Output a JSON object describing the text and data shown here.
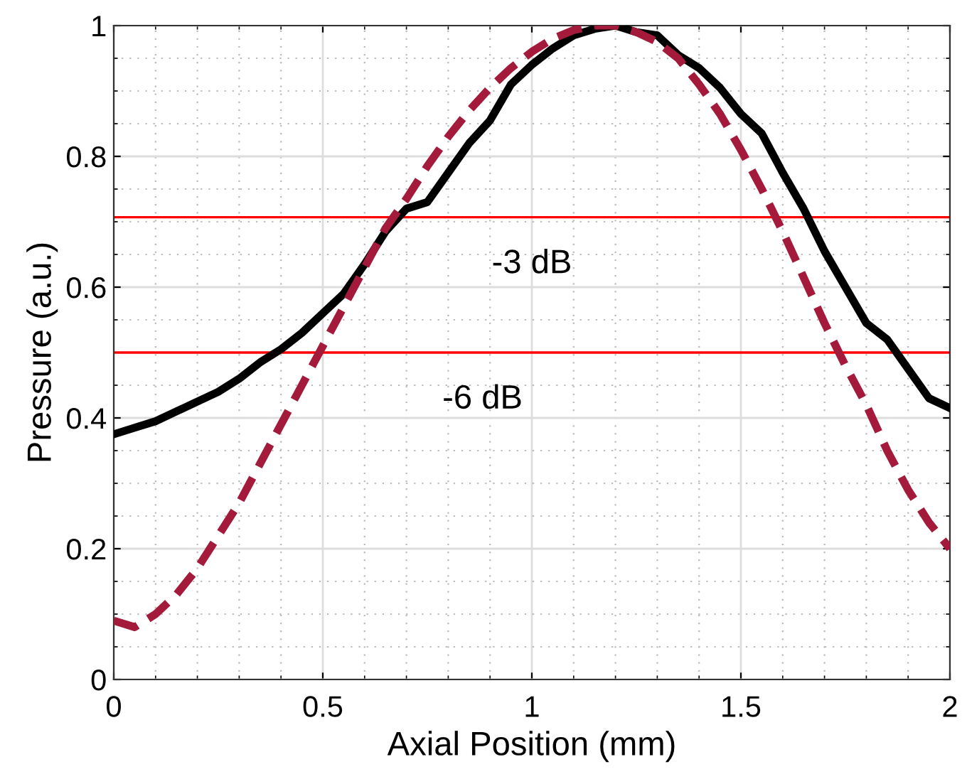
{
  "chart_data": {
    "type": "line",
    "xlabel": "Axial Position (mm)",
    "ylabel": "Pressure (a.u.)",
    "xlim": [
      0,
      2
    ],
    "ylim": [
      0,
      1
    ],
    "xticks": [
      0,
      0.5,
      1,
      1.5,
      2
    ],
    "yticks": [
      0,
      0.2,
      0.4,
      0.6,
      0.8,
      1
    ],
    "grid": true,
    "series": [
      {
        "color": "#000000",
        "line_style": "solid",
        "x": [
          0,
          0.05,
          0.1,
          0.15,
          0.2,
          0.25,
          0.3,
          0.35,
          0.4,
          0.45,
          0.5,
          0.55,
          0.6,
          0.65,
          0.7,
          0.75,
          0.8,
          0.85,
          0.9,
          0.95,
          1.0,
          1.05,
          1.1,
          1.15,
          1.2,
          1.25,
          1.3,
          1.35,
          1.4,
          1.45,
          1.5,
          1.55,
          1.6,
          1.65,
          1.7,
          1.75,
          1.8,
          1.85,
          1.9,
          1.95,
          2.0
        ],
        "values": [
          0.375,
          0.385,
          0.395,
          0.41,
          0.425,
          0.44,
          0.46,
          0.485,
          0.505,
          0.53,
          0.56,
          0.59,
          0.635,
          0.685,
          0.72,
          0.73,
          0.775,
          0.82,
          0.855,
          0.91,
          0.94,
          0.965,
          0.985,
          0.995,
          1.0,
          0.99,
          0.985,
          0.955,
          0.935,
          0.905,
          0.865,
          0.835,
          0.775,
          0.72,
          0.655,
          0.6,
          0.545,
          0.52,
          0.475,
          0.43,
          0.415
        ]
      },
      {
        "color": "#a31a3a",
        "line_style": "dashed",
        "x": [
          0,
          0.05,
          0.1,
          0.15,
          0.2,
          0.25,
          0.3,
          0.35,
          0.4,
          0.45,
          0.5,
          0.55,
          0.6,
          0.65,
          0.7,
          0.75,
          0.8,
          0.85,
          0.9,
          0.95,
          1.0,
          1.05,
          1.1,
          1.15,
          1.2,
          1.25,
          1.3,
          1.35,
          1.4,
          1.45,
          1.5,
          1.55,
          1.6,
          1.65,
          1.7,
          1.75,
          1.8,
          1.85,
          1.9,
          1.95,
          2.0
        ],
        "values": [
          0.09,
          0.08,
          0.1,
          0.13,
          0.17,
          0.22,
          0.27,
          0.33,
          0.39,
          0.45,
          0.51,
          0.57,
          0.63,
          0.69,
          0.735,
          0.785,
          0.83,
          0.87,
          0.905,
          0.935,
          0.96,
          0.98,
          0.993,
          1.0,
          1.0,
          0.99,
          0.975,
          0.95,
          0.91,
          0.865,
          0.81,
          0.75,
          0.685,
          0.615,
          0.545,
          0.48,
          0.42,
          0.35,
          0.29,
          0.24,
          0.2
        ]
      }
    ],
    "ref_lines": [
      {
        "axis": "y",
        "value": 0.707,
        "label": "-3 dB",
        "color": "#ff0000"
      },
      {
        "axis": "y",
        "value": 0.5,
        "label": "-6 dB",
        "color": "#ff0000"
      }
    ]
  }
}
